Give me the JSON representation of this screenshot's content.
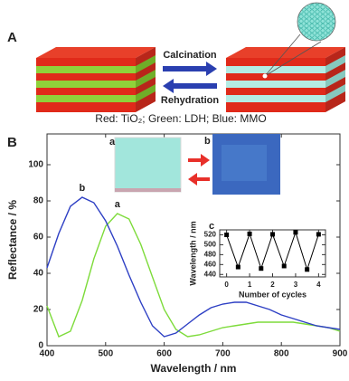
{
  "panel_labels": [
    "A",
    "B"
  ],
  "scheme": {
    "forward": "Calcination",
    "backward": "Rehydration",
    "legend": "Red: TiO₂; Green: LDH; Blue: MMO"
  },
  "photos": {
    "labels": [
      "a",
      "b"
    ]
  },
  "chart_data": [
    {
      "type": "line",
      "xlabel": "Wavelength / nm",
      "ylabel": "Reflectance / %",
      "x": [
        400,
        420,
        440,
        460,
        480,
        500,
        520,
        540,
        560,
        580,
        600,
        620,
        640,
        660,
        680,
        700,
        720,
        740,
        760,
        780,
        800,
        820,
        840,
        860,
        880,
        900
      ],
      "series": [
        {
          "name": "a",
          "color": "#7ddb3a",
          "values": [
            22,
            5,
            8,
            25,
            48,
            66,
            73,
            70,
            56,
            38,
            20,
            9,
            5,
            6,
            8,
            10,
            11,
            12,
            13,
            13,
            13,
            13,
            12,
            11,
            10,
            8
          ]
        },
        {
          "name": "b",
          "color": "#2d3fc4",
          "values": [
            43,
            62,
            77,
            82,
            79,
            69,
            55,
            39,
            24,
            11,
            5,
            7,
            12,
            17,
            21,
            23,
            24,
            24,
            22,
            20,
            17,
            15,
            13,
            11,
            10,
            9
          ]
        }
      ],
      "xlim": [
        400,
        900
      ],
      "xticks": [
        400,
        500,
        600,
        700,
        800,
        900
      ],
      "ylim": [
        0,
        117
      ],
      "yticks": [
        0,
        20,
        40,
        60,
        80,
        100
      ]
    },
    {
      "type": "line",
      "title": "c",
      "xlabel": "Number of cycles",
      "ylabel": "Wavelength / nm",
      "marker": "square",
      "x": [
        0,
        0.5,
        1,
        1.5,
        2,
        2.5,
        3,
        3.5,
        4
      ],
      "series": [
        {
          "color": "#000000",
          "values": [
            520,
            455,
            522,
            452,
            521,
            457,
            525,
            450,
            521
          ]
        }
      ],
      "xlim": [
        -0.3,
        4.3
      ],
      "xticks": [
        0,
        1,
        2,
        3,
        4
      ],
      "ylim": [
        435,
        530
      ],
      "yticks": [
        440,
        460,
        480,
        500,
        520
      ]
    }
  ]
}
